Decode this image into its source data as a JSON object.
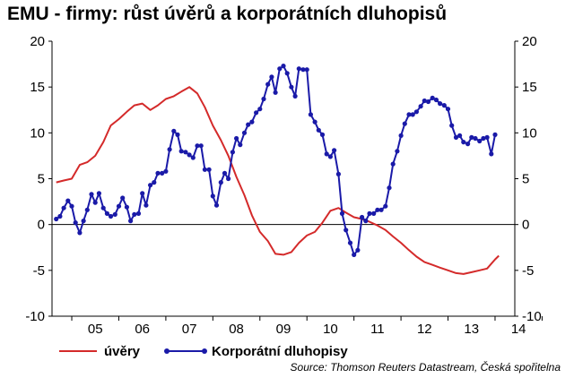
{
  "chart_data": {
    "type": "line",
    "title": "EMU - firmy: růst úvěrů a korporátních dluhopisů",
    "source": "Source: Thomson Reuters Datastream, Česká spořitelna",
    "x_tick_labels": [
      "05",
      "06",
      "07",
      "08",
      "09",
      "10",
      "11",
      "12",
      "13",
      "14"
    ],
    "y_tick_labels": [
      "20",
      "15",
      "10",
      "5",
      "0",
      "-5",
      "-10"
    ],
    "x_range": [
      2004.58,
      2014.42
    ],
    "ylim": [
      -10,
      20
    ],
    "y_axis_right": true,
    "grid": false,
    "legend_position": "bottom-left",
    "series": [
      {
        "name": "úvěry",
        "color": "#d42a2a",
        "marker": "none",
        "x": [
          2004.67,
          2004.83,
          2005.0,
          2005.17,
          2005.33,
          2005.5,
          2005.67,
          2005.83,
          2006.0,
          2006.17,
          2006.33,
          2006.5,
          2006.67,
          2006.83,
          2007.0,
          2007.17,
          2007.33,
          2007.5,
          2007.67,
          2007.83,
          2008.0,
          2008.17,
          2008.33,
          2008.5,
          2008.67,
          2008.83,
          2009.0,
          2009.17,
          2009.33,
          2009.5,
          2009.67,
          2009.83,
          2010.0,
          2010.17,
          2010.33,
          2010.5,
          2010.67,
          2010.83,
          2011.0,
          2011.17,
          2011.33,
          2011.5,
          2011.67,
          2011.83,
          2012.0,
          2012.17,
          2012.33,
          2012.5,
          2012.67,
          2012.83,
          2013.0,
          2013.17,
          2013.33,
          2013.5,
          2013.67,
          2013.83,
          2014.0,
          2014.08
        ],
        "values": [
          4.6,
          4.8,
          5.0,
          6.5,
          6.8,
          7.5,
          9.0,
          10.8,
          11.5,
          12.3,
          13.0,
          13.2,
          12.5,
          13.0,
          13.7,
          14.0,
          14.5,
          15.0,
          14.3,
          12.8,
          10.8,
          9.2,
          7.5,
          5.2,
          3.2,
          1.0,
          -0.8,
          -1.8,
          -3.2,
          -3.3,
          -3.0,
          -2.0,
          -1.2,
          -0.8,
          0.2,
          1.5,
          1.8,
          1.3,
          0.8,
          0.6,
          0.3,
          -0.1,
          -0.6,
          -1.3,
          -2.0,
          -2.8,
          -3.5,
          -4.1,
          -4.4,
          -4.7,
          -5.0,
          -5.3,
          -5.4,
          -5.2,
          -5.0,
          -4.8,
          -3.8,
          -3.4
        ]
      },
      {
        "name": "Korporátní dluhopisy",
        "color": "#1a1aa8",
        "marker": "circle",
        "x": [
          2004.67,
          2004.75,
          2004.83,
          2004.92,
          2005.0,
          2005.08,
          2005.17,
          2005.25,
          2005.33,
          2005.42,
          2005.5,
          2005.58,
          2005.67,
          2005.75,
          2005.83,
          2005.92,
          2006.0,
          2006.08,
          2006.17,
          2006.25,
          2006.33,
          2006.42,
          2006.5,
          2006.58,
          2006.67,
          2006.75,
          2006.83,
          2006.92,
          2007.0,
          2007.08,
          2007.17,
          2007.25,
          2007.33,
          2007.42,
          2007.5,
          2007.58,
          2007.67,
          2007.75,
          2007.83,
          2007.92,
          2008.0,
          2008.08,
          2008.17,
          2008.25,
          2008.33,
          2008.42,
          2008.5,
          2008.58,
          2008.67,
          2008.75,
          2008.83,
          2008.92,
          2009.0,
          2009.08,
          2009.17,
          2009.25,
          2009.33,
          2009.42,
          2009.5,
          2009.58,
          2009.67,
          2009.75,
          2009.83,
          2009.92,
          2010.0,
          2010.08,
          2010.17,
          2010.25,
          2010.33,
          2010.42,
          2010.5,
          2010.58,
          2010.67,
          2010.75,
          2010.83,
          2010.92,
          2011.0,
          2011.08,
          2011.17,
          2011.25,
          2011.33,
          2011.42,
          2011.5,
          2011.58,
          2011.67,
          2011.75,
          2011.83,
          2011.92,
          2012.0,
          2012.08,
          2012.17,
          2012.25,
          2012.33,
          2012.42,
          2012.5,
          2012.58,
          2012.67,
          2012.75,
          2012.83,
          2012.92,
          2013.0,
          2013.08,
          2013.17,
          2013.25,
          2013.33,
          2013.42,
          2013.5,
          2013.58,
          2013.67,
          2013.75,
          2013.83,
          2013.92,
          2014.0
        ],
        "values": [
          0.6,
          0.9,
          1.8,
          2.6,
          2.0,
          0.2,
          -0.9,
          0.4,
          1.6,
          3.3,
          2.4,
          3.4,
          1.8,
          1.2,
          0.9,
          1.1,
          2.0,
          2.9,
          1.9,
          0.4,
          1.1,
          1.2,
          3.4,
          2.1,
          4.3,
          4.6,
          5.6,
          5.6,
          5.8,
          8.2,
          10.2,
          9.8,
          8.0,
          7.9,
          7.6,
          7.3,
          8.6,
          8.6,
          6.0,
          6.0,
          3.1,
          2.1,
          4.6,
          5.6,
          5.0,
          7.9,
          9.4,
          8.7,
          10.0,
          10.9,
          11.2,
          12.2,
          12.6,
          13.7,
          15.3,
          16.1,
          14.4,
          17.0,
          17.3,
          16.5,
          15.0,
          14.0,
          17.0,
          16.9,
          16.9,
          12.0,
          11.2,
          10.3,
          9.8,
          7.7,
          7.4,
          8.1,
          5.5,
          1.2,
          -0.6,
          -2.0,
          -3.3,
          -2.8,
          0.8,
          0.4,
          1.2,
          1.2,
          1.6,
          1.6,
          2.0,
          4.0,
          6.6,
          8.0,
          9.7,
          11.0,
          12.0,
          12.0,
          12.3,
          12.9,
          13.5,
          13.4,
          13.8,
          13.6,
          13.2,
          13.0,
          12.6,
          10.8,
          9.5,
          9.7,
          9.0,
          8.8,
          9.5,
          9.4,
          9.1,
          9.4,
          9.5,
          7.7,
          9.8
        ]
      }
    ]
  }
}
